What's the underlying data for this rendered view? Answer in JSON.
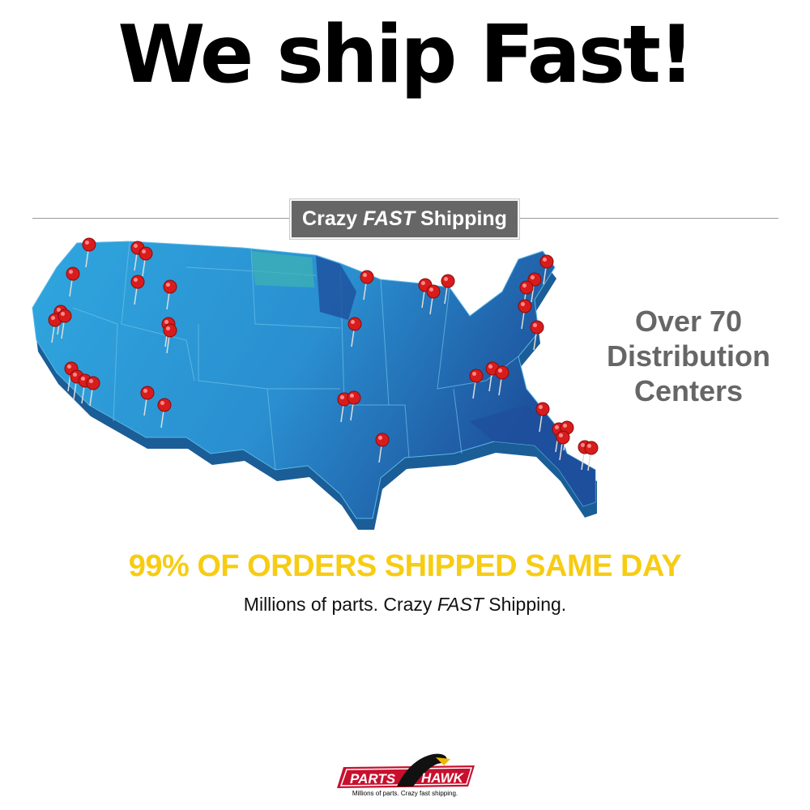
{
  "headline": "We ship Fast!",
  "banner": {
    "prefix": "Crazy",
    "emphasis": "FAST",
    "suffix": "Shipping"
  },
  "distribution": {
    "line1": "Over 70",
    "line2": "Distribution",
    "line3": "Centers"
  },
  "same_day": "99% OF ORDERS SHIPPED SAME DAY",
  "tagline": {
    "prefix": "Millions of parts. Crazy ",
    "emphasis": "FAST",
    "suffix": " Shipping."
  },
  "logo": {
    "word1": "PARTS",
    "word2": "HAWK",
    "tagline": "Millions of parts. Crazy fast shipping."
  },
  "colors": {
    "map_blue": "#2a9fd8",
    "map_dark": "#1d5fa8",
    "pin_red": "#d81c1c",
    "same_day_yellow": "#f7cc12",
    "banner_gray": "#666666"
  }
}
